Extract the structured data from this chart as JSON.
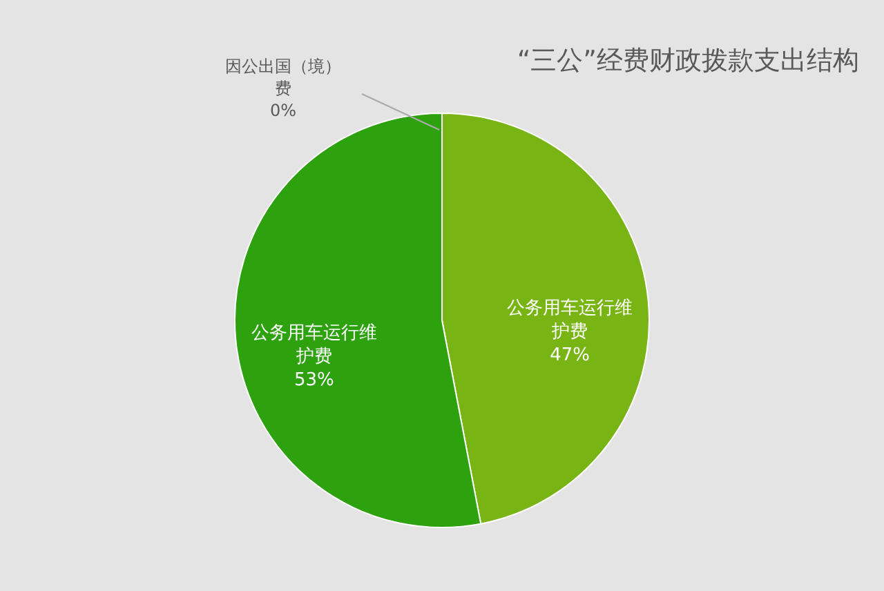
{
  "chart_data": {
    "type": "pie",
    "title": "“三公”经费财政拨款支出结构",
    "categories": [
      "因公出国（境）费",
      "公务用车运行维护费",
      "公务用车运行维护费"
    ],
    "values": [
      0,
      47,
      53
    ],
    "value_labels": [
      "0%",
      "47%",
      "53%"
    ],
    "colors": [
      "#4f8a10",
      "#78b414",
      "#2ea10f"
    ]
  }
}
